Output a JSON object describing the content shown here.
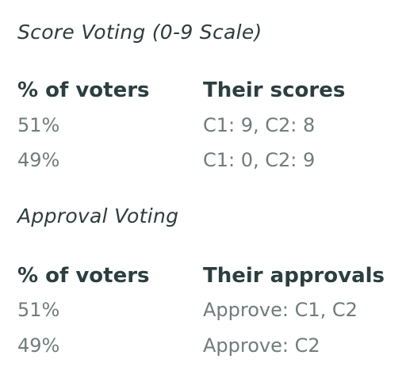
{
  "sections": [
    {
      "title": "Score Voting (0-9 Scale)",
      "headers": [
        "% of voters",
        "Their scores"
      ],
      "rows": [
        [
          "51%",
          "C1: 9, C2: 8"
        ],
        [
          "49%",
          "C1: 0, C2: 9"
        ]
      ]
    },
    {
      "title": "Approval Voting",
      "headers": [
        "% of voters",
        "Their approvals"
      ],
      "rows": [
        [
          "51%",
          "Approve: C1, C2"
        ],
        [
          "49%",
          "Approve: C2"
        ]
      ]
    }
  ]
}
